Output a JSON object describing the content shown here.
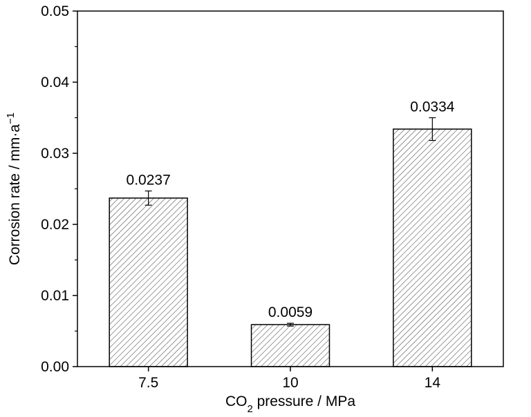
{
  "chart_data": {
    "type": "bar",
    "categories": [
      "7.5",
      "10",
      "14"
    ],
    "values": [
      0.0237,
      0.0059,
      0.0334
    ],
    "errors": [
      0.001,
      0.0002,
      0.0016
    ],
    "data_labels": [
      "0.0237",
      "0.0059",
      "0.0334"
    ],
    "ylim": [
      0,
      0.05
    ],
    "y_ticks": [
      "0.00",
      "0.01",
      "0.02",
      "0.03",
      "0.04",
      "0.05"
    ],
    "xlabel": {
      "main": "CO",
      "sub": "2",
      "rest": " pressure / MPa"
    },
    "ylabel": {
      "main": "Corrosion rate / mm·a",
      "sup": "−1"
    },
    "bar_fill": "hatched",
    "colors": {
      "stroke": "#000000",
      "hatch": "#555555",
      "background": "#ffffff"
    }
  }
}
